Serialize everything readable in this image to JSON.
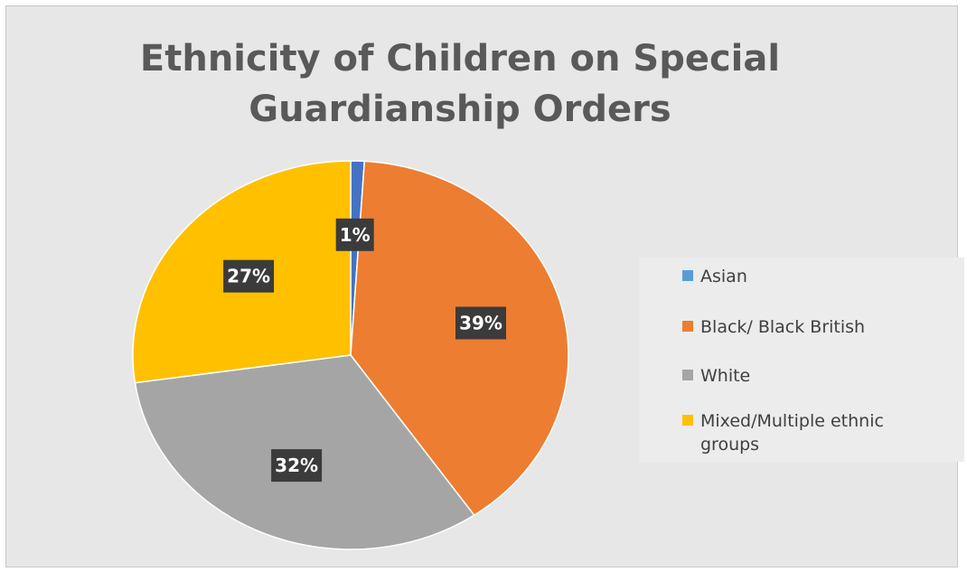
{
  "chart_data": {
    "type": "pie",
    "title": "Ethnicity of Children on Special Guardianship Orders",
    "categories": [
      "Asian",
      "Black/ Black British",
      "White",
      "Mixed/Multiple ethnic groups"
    ],
    "values": [
      1,
      39,
      32,
      27
    ],
    "data_labels": [
      "1%",
      "39%",
      "32%",
      "27%"
    ],
    "colors": [
      "#4472c4",
      "#ed7d31",
      "#a5a5a5",
      "#ffc000"
    ],
    "legend_colors": [
      "#5b9bd5",
      "#ed7d31",
      "#a5a5a5",
      "#ffc000"
    ],
    "legend_position": "right"
  }
}
